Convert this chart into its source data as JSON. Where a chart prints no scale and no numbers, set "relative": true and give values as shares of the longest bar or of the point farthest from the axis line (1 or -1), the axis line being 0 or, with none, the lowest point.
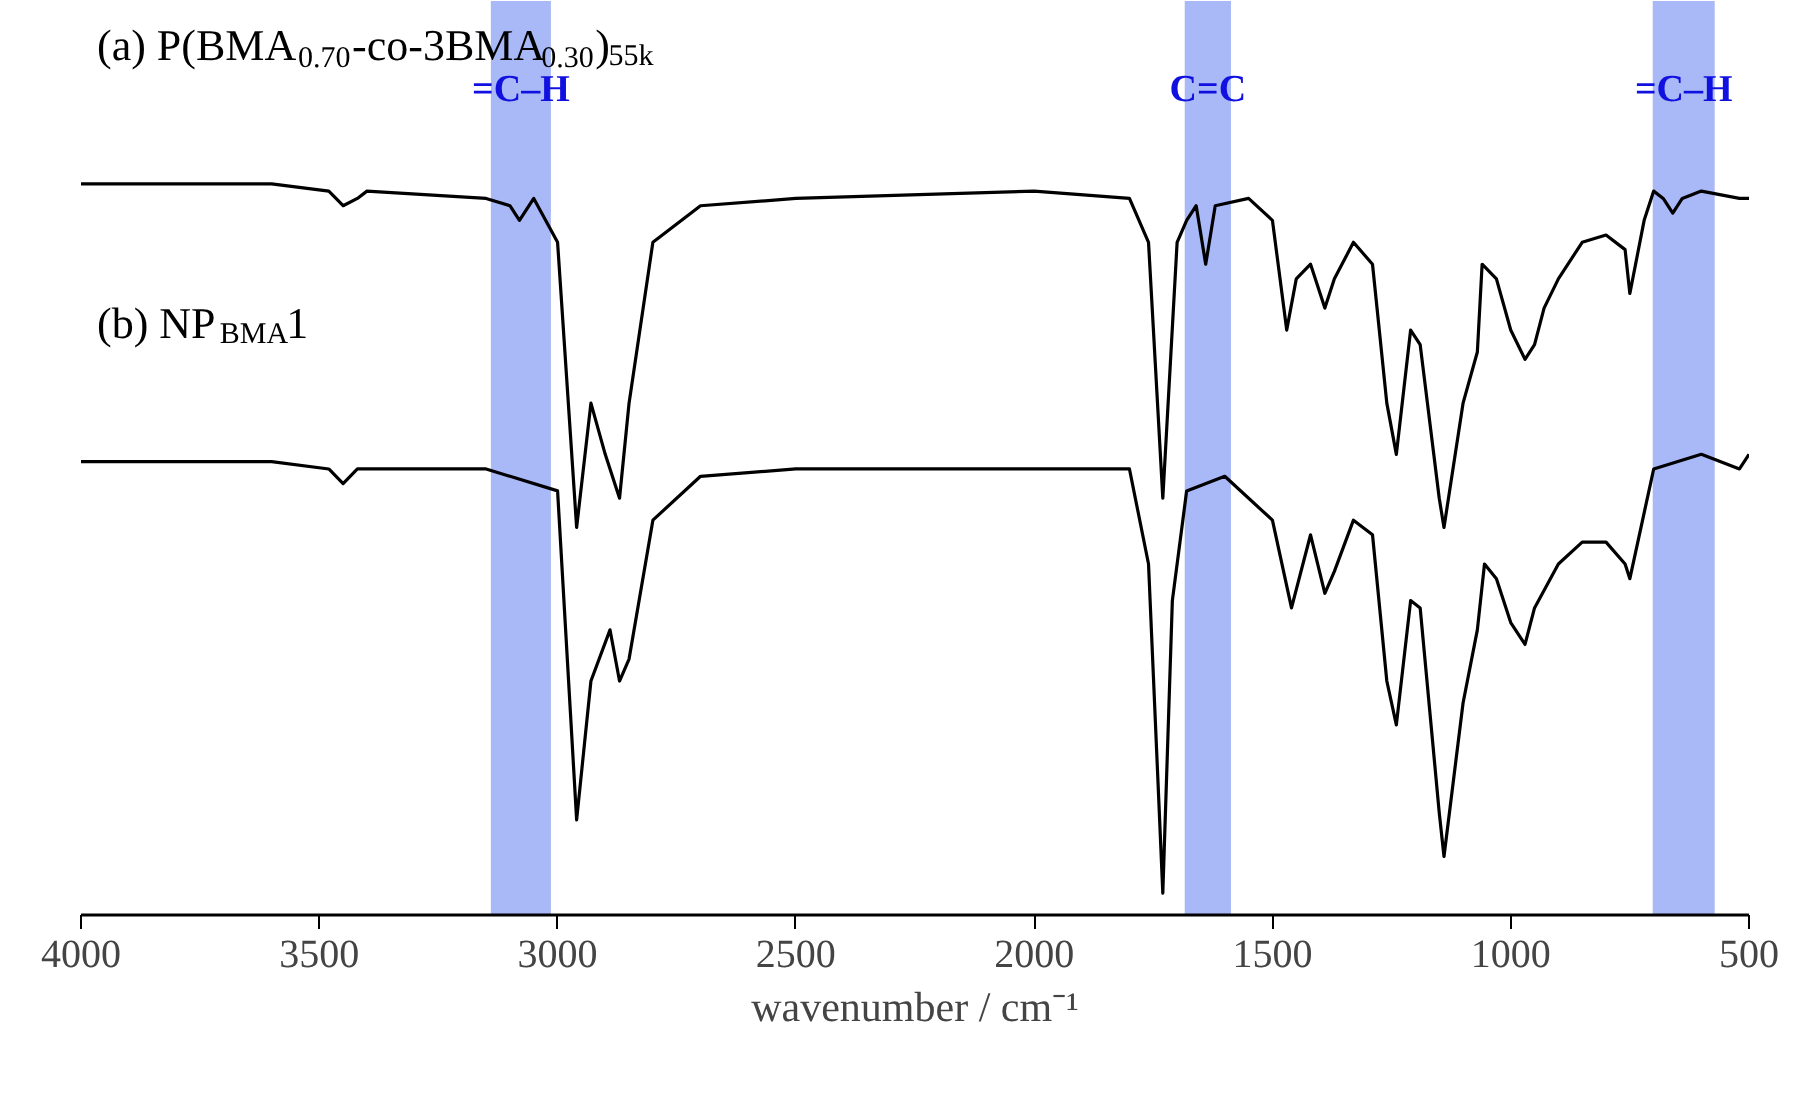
{
  "chart_data": {
    "type": "line",
    "relative": true,
    "xlabel": "wavenumber / cm⁻¹",
    "xlim": [
      4000,
      500
    ],
    "xticks": [
      4000,
      3500,
      3000,
      2500,
      2000,
      1500,
      1000,
      500
    ],
    "grid": false,
    "marker": "none",
    "line_style": "solid",
    "series": [
      {
        "name": "(a) P(BMA$_{0.70}$-co-3BMA$_{0.30}$)$_{55k}$",
        "color": "#000000",
        "x": [
          4000,
          3600,
          3480,
          3450,
          3420,
          3400,
          3150,
          3100,
          3080,
          3050,
          3000,
          2960,
          2930,
          2900,
          2870,
          2850,
          2800,
          2700,
          2500,
          2000,
          1800,
          1760,
          1730,
          1700,
          1680,
          1660,
          1640,
          1620,
          1550,
          1500,
          1470,
          1450,
          1420,
          1390,
          1370,
          1330,
          1290,
          1260,
          1240,
          1210,
          1190,
          1150,
          1140,
          1100,
          1070,
          1060,
          1030,
          1000,
          970,
          950,
          930,
          900,
          850,
          800,
          760,
          750,
          720,
          700,
          680,
          660,
          640,
          600,
          520,
          500
        ],
        "values": [
          1.0,
          1.0,
          0.99,
          0.97,
          0.98,
          0.99,
          0.98,
          0.97,
          0.95,
          0.98,
          0.92,
          0.53,
          0.7,
          0.63,
          0.57,
          0.7,
          0.92,
          0.97,
          0.98,
          0.99,
          0.98,
          0.92,
          0.57,
          0.92,
          0.95,
          0.97,
          0.89,
          0.97,
          0.98,
          0.95,
          0.8,
          0.87,
          0.89,
          0.83,
          0.87,
          0.92,
          0.89,
          0.7,
          0.63,
          0.8,
          0.78,
          0.57,
          0.53,
          0.7,
          0.77,
          0.89,
          0.87,
          0.8,
          0.76,
          0.78,
          0.83,
          0.87,
          0.92,
          0.93,
          0.91,
          0.85,
          0.95,
          0.99,
          0.98,
          0.96,
          0.98,
          0.99,
          0.98,
          0.98
        ]
      },
      {
        "name": "(b) NP$_{BMA}$1",
        "color": "#000000",
        "x": [
          4000,
          3600,
          3480,
          3450,
          3420,
          3150,
          3000,
          2960,
          2930,
          2890,
          2870,
          2850,
          2800,
          2700,
          2500,
          1800,
          1760,
          1730,
          1710,
          1680,
          1600,
          1500,
          1460,
          1420,
          1390,
          1370,
          1330,
          1290,
          1260,
          1240,
          1210,
          1190,
          1150,
          1140,
          1100,
          1070,
          1055,
          1030,
          1000,
          970,
          950,
          900,
          850,
          800,
          760,
          750,
          720,
          700,
          600,
          520,
          500
        ],
        "values": [
          0.62,
          0.62,
          0.61,
          0.59,
          0.61,
          0.61,
          0.58,
          0.13,
          0.32,
          0.39,
          0.32,
          0.35,
          0.54,
          0.6,
          0.61,
          0.61,
          0.48,
          0.03,
          0.43,
          0.58,
          0.6,
          0.54,
          0.42,
          0.52,
          0.44,
          0.47,
          0.54,
          0.52,
          0.32,
          0.26,
          0.43,
          0.42,
          0.14,
          0.08,
          0.29,
          0.39,
          0.48,
          0.46,
          0.4,
          0.37,
          0.42,
          0.48,
          0.51,
          0.51,
          0.48,
          0.46,
          0.55,
          0.61,
          0.63,
          0.61,
          0.63
        ]
      }
    ],
    "bands": [
      {
        "axis": "x",
        "from": 3140,
        "to": 3014,
        "label": "=C–H",
        "color": "#a4b4f6"
      },
      {
        "axis": "x",
        "from": 1684,
        "to": 1587,
        "label": "C=C",
        "color": "#a4b4f6"
      },
      {
        "axis": "x",
        "from": 702,
        "to": 572,
        "label": "=C–H",
        "color": "#a4b4f6"
      }
    ]
  }
}
